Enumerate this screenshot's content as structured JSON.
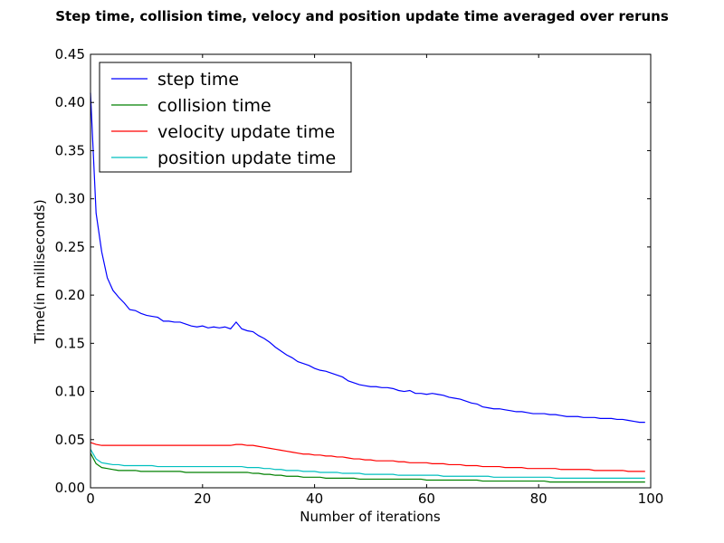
{
  "chart_data": {
    "type": "line",
    "title": "Step time, collision time, velocy and position update time averaged over reruns",
    "xlabel": "Number of iterations",
    "ylabel": "Time(in milliseconds)",
    "xlim": [
      0,
      100
    ],
    "ylim": [
      0,
      0.45
    ],
    "xticks": [
      0,
      20,
      40,
      60,
      80,
      100
    ],
    "xtick_labels": [
      "0",
      "20",
      "40",
      "60",
      "80",
      "100"
    ],
    "yticks": [
      0,
      0.05,
      0.1,
      0.15,
      0.2,
      0.25,
      0.3,
      0.35,
      0.4,
      0.45
    ],
    "ytick_labels": [
      "0.00",
      "0.05",
      "0.10",
      "0.15",
      "0.20",
      "0.25",
      "0.30",
      "0.35",
      "0.40",
      "0.45"
    ],
    "grid": false,
    "legend_position": "top-left",
    "x": [
      0,
      1,
      2,
      3,
      4,
      5,
      6,
      7,
      8,
      9,
      10,
      11,
      12,
      13,
      14,
      15,
      16,
      17,
      18,
      19,
      20,
      21,
      22,
      23,
      24,
      25,
      26,
      27,
      28,
      29,
      30,
      31,
      32,
      33,
      34,
      35,
      36,
      37,
      38,
      39,
      40,
      41,
      42,
      43,
      44,
      45,
      46,
      47,
      48,
      49,
      50,
      51,
      52,
      53,
      54,
      55,
      56,
      57,
      58,
      59,
      60,
      61,
      62,
      63,
      64,
      65,
      66,
      67,
      68,
      69,
      70,
      71,
      72,
      73,
      74,
      75,
      76,
      77,
      78,
      79,
      80,
      81,
      82,
      83,
      84,
      85,
      86,
      87,
      88,
      89,
      90,
      91,
      92,
      93,
      94,
      95,
      96,
      97,
      98,
      99
    ],
    "series": [
      {
        "name": "step time",
        "color": "#0000ff",
        "values": [
          0.41,
          0.285,
          0.245,
          0.218,
          0.205,
          0.198,
          0.192,
          0.185,
          0.184,
          0.181,
          0.179,
          0.178,
          0.177,
          0.173,
          0.173,
          0.172,
          0.172,
          0.17,
          0.168,
          0.167,
          0.168,
          0.166,
          0.167,
          0.166,
          0.167,
          0.165,
          0.172,
          0.165,
          0.163,
          0.162,
          0.158,
          0.155,
          0.151,
          0.146,
          0.142,
          0.138,
          0.135,
          0.131,
          0.129,
          0.127,
          0.124,
          0.122,
          0.121,
          0.119,
          0.117,
          0.115,
          0.111,
          0.109,
          0.107,
          0.106,
          0.105,
          0.105,
          0.104,
          0.104,
          0.103,
          0.101,
          0.1,
          0.101,
          0.098,
          0.098,
          0.097,
          0.098,
          0.097,
          0.096,
          0.094,
          0.093,
          0.092,
          0.09,
          0.088,
          0.087,
          0.084,
          0.083,
          0.082,
          0.082,
          0.081,
          0.08,
          0.079,
          0.079,
          0.078,
          0.077,
          0.077,
          0.077,
          0.076,
          0.076,
          0.075,
          0.074,
          0.074,
          0.074,
          0.073,
          0.073,
          0.073,
          0.072,
          0.072,
          0.072,
          0.071,
          0.071,
          0.07,
          0.069,
          0.068,
          0.068
        ]
      },
      {
        "name": "collision time",
        "color": "#008000",
        "values": [
          0.036,
          0.025,
          0.021,
          0.02,
          0.019,
          0.018,
          0.018,
          0.018,
          0.018,
          0.017,
          0.017,
          0.017,
          0.017,
          0.017,
          0.017,
          0.017,
          0.017,
          0.016,
          0.016,
          0.016,
          0.016,
          0.016,
          0.016,
          0.016,
          0.016,
          0.016,
          0.016,
          0.016,
          0.016,
          0.015,
          0.015,
          0.014,
          0.014,
          0.013,
          0.013,
          0.012,
          0.012,
          0.012,
          0.011,
          0.011,
          0.011,
          0.011,
          0.01,
          0.01,
          0.01,
          0.01,
          0.01,
          0.01,
          0.009,
          0.009,
          0.009,
          0.009,
          0.009,
          0.009,
          0.009,
          0.009,
          0.009,
          0.009,
          0.009,
          0.009,
          0.008,
          0.008,
          0.008,
          0.008,
          0.008,
          0.008,
          0.008,
          0.008,
          0.008,
          0.008,
          0.007,
          0.007,
          0.007,
          0.007,
          0.007,
          0.007,
          0.007,
          0.007,
          0.007,
          0.007,
          0.007,
          0.007,
          0.006,
          0.006,
          0.006,
          0.006,
          0.006,
          0.006,
          0.006,
          0.006,
          0.006,
          0.006,
          0.006,
          0.006,
          0.006,
          0.006,
          0.006,
          0.006,
          0.006,
          0.006
        ]
      },
      {
        "name": "velocity update time",
        "color": "#ff0000",
        "values": [
          0.047,
          0.045,
          0.044,
          0.044,
          0.044,
          0.044,
          0.044,
          0.044,
          0.044,
          0.044,
          0.044,
          0.044,
          0.044,
          0.044,
          0.044,
          0.044,
          0.044,
          0.044,
          0.044,
          0.044,
          0.044,
          0.044,
          0.044,
          0.044,
          0.044,
          0.044,
          0.045,
          0.045,
          0.044,
          0.044,
          0.043,
          0.042,
          0.041,
          0.04,
          0.039,
          0.038,
          0.037,
          0.036,
          0.035,
          0.035,
          0.034,
          0.034,
          0.033,
          0.033,
          0.032,
          0.032,
          0.031,
          0.03,
          0.03,
          0.029,
          0.029,
          0.028,
          0.028,
          0.028,
          0.028,
          0.027,
          0.027,
          0.026,
          0.026,
          0.026,
          0.026,
          0.025,
          0.025,
          0.025,
          0.024,
          0.024,
          0.024,
          0.023,
          0.023,
          0.023,
          0.022,
          0.022,
          0.022,
          0.022,
          0.021,
          0.021,
          0.021,
          0.021,
          0.02,
          0.02,
          0.02,
          0.02,
          0.02,
          0.02,
          0.019,
          0.019,
          0.019,
          0.019,
          0.019,
          0.019,
          0.018,
          0.018,
          0.018,
          0.018,
          0.018,
          0.018,
          0.017,
          0.017,
          0.017,
          0.017
        ]
      },
      {
        "name": "position update time",
        "color": "#00bfbf",
        "values": [
          0.04,
          0.03,
          0.026,
          0.025,
          0.024,
          0.024,
          0.023,
          0.023,
          0.023,
          0.023,
          0.023,
          0.023,
          0.022,
          0.022,
          0.022,
          0.022,
          0.022,
          0.022,
          0.022,
          0.022,
          0.022,
          0.022,
          0.022,
          0.022,
          0.022,
          0.022,
          0.022,
          0.022,
          0.021,
          0.021,
          0.021,
          0.02,
          0.02,
          0.019,
          0.019,
          0.018,
          0.018,
          0.018,
          0.017,
          0.017,
          0.017,
          0.016,
          0.016,
          0.016,
          0.016,
          0.015,
          0.015,
          0.015,
          0.015,
          0.014,
          0.014,
          0.014,
          0.014,
          0.014,
          0.014,
          0.013,
          0.013,
          0.013,
          0.013,
          0.013,
          0.013,
          0.013,
          0.013,
          0.012,
          0.012,
          0.012,
          0.012,
          0.012,
          0.012,
          0.012,
          0.012,
          0.012,
          0.011,
          0.011,
          0.011,
          0.011,
          0.011,
          0.011,
          0.011,
          0.011,
          0.011,
          0.011,
          0.011,
          0.01,
          0.01,
          0.01,
          0.01,
          0.01,
          0.01,
          0.01,
          0.01,
          0.01,
          0.01,
          0.01,
          0.01,
          0.01,
          0.01,
          0.01,
          0.01,
          0.01
        ]
      }
    ]
  }
}
